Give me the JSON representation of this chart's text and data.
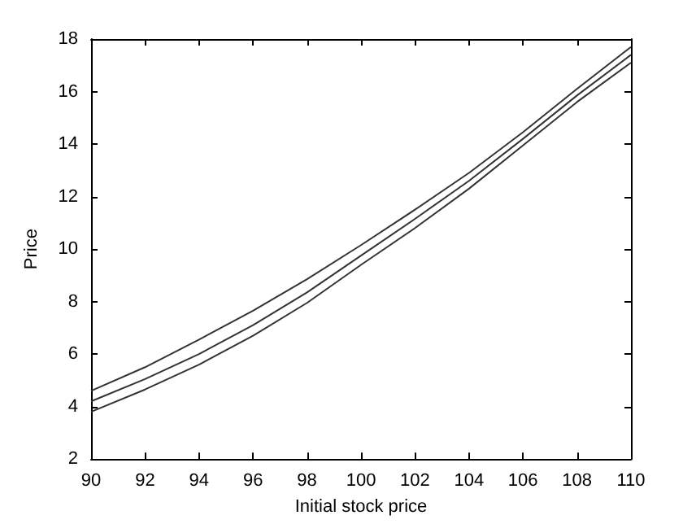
{
  "chart_data": {
    "type": "line",
    "xlabel": "Initial stock price",
    "ylabel": "Price",
    "x": [
      90,
      92,
      94,
      96,
      98,
      100,
      102,
      104,
      106,
      108,
      110
    ],
    "series": [
      {
        "color": "#333333",
        "values": [
          4.6,
          5.5,
          6.55,
          7.65,
          8.85,
          10.15,
          11.5,
          12.9,
          14.45,
          16.1,
          17.7
        ]
      },
      {
        "color": "#333333",
        "values": [
          4.2,
          5.05,
          6.0,
          7.1,
          8.35,
          9.75,
          11.15,
          12.6,
          14.2,
          15.85,
          17.4
        ]
      },
      {
        "color": "#333333",
        "values": [
          3.8,
          4.65,
          5.6,
          6.7,
          7.95,
          9.4,
          10.8,
          12.3,
          13.95,
          15.6,
          17.1
        ]
      }
    ],
    "xlim": [
      90,
      110
    ],
    "xticks": [
      90,
      92,
      94,
      96,
      98,
      100,
      102,
      104,
      106,
      108,
      110
    ],
    "ylim": [
      2,
      18
    ],
    "yticks": [
      2,
      4,
      6,
      8,
      10,
      12,
      14,
      16,
      18
    ],
    "grid": false,
    "marker": "none",
    "line_style": "solid"
  }
}
